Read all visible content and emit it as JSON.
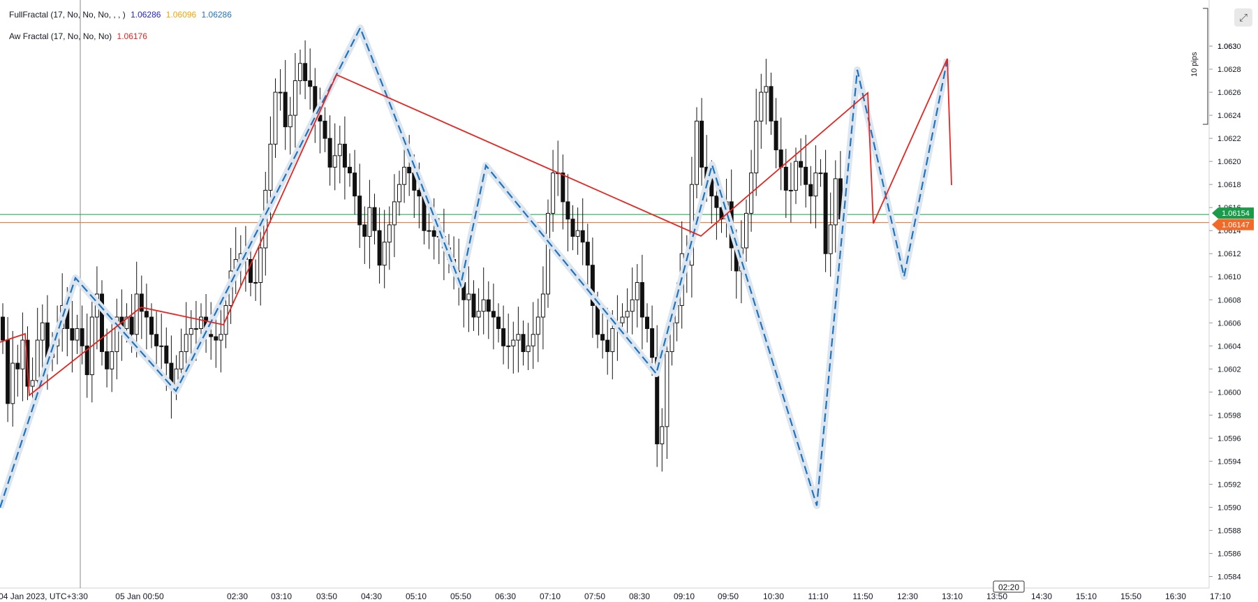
{
  "legend": {
    "indicator1": {
      "name": "FullFractal (17, No, No, No, , , )",
      "v1": "1.06286",
      "v2": "1.06096",
      "v3": "1.06286",
      "c1": "#1f1fd6",
      "c2": "#f2a500",
      "c3": "#1e73be"
    },
    "indicator2": {
      "name": "Aw Fractal (17, No, No, No)",
      "v1": "1.06176",
      "c1": "#e8231f"
    }
  },
  "price_badges": {
    "green": "1.06154",
    "orange": "1.06147",
    "green_color": "#1a9b4a",
    "orange_color": "#f06a2a"
  },
  "scale_label": "10 pips",
  "time_badge": "02:20",
  "chart_data": {
    "type": "candlestick",
    "ylim": [
      1.0583,
      1.0634
    ],
    "y_ticks": [
      "1.0584",
      "1.0586",
      "1.0588",
      "1.0590",
      "1.0592",
      "1.0594",
      "1.0596",
      "1.0598",
      "1.0600",
      "1.0602",
      "1.0604",
      "1.0606",
      "1.0608",
      "1.0610",
      "1.0612",
      "1.0614",
      "1.0616",
      "1.0618",
      "1.0620",
      "1.0622",
      "1.0624",
      "1.0626",
      "1.0628",
      "1.0630",
      "1.063"
    ],
    "x_ticks": [
      "04 Jan 2023, UTC+3:30",
      "05 Jan 00:50",
      "02:30",
      "03:10",
      "03:50",
      "04:30",
      "05:10",
      "05:50",
      "06:30",
      "07:10",
      "07:50",
      "08:30",
      "09:10",
      "09:50",
      "10:30",
      "11:10",
      "11:50",
      "12:30",
      "13:10",
      "13:50",
      "14:30",
      "15:10",
      "15:50",
      "16:30",
      "17:10"
    ],
    "candles_close": [
      1.06045,
      1.0599,
      1.06025,
      1.0602,
      1.06045,
      1.06005,
      1.0601,
      1.06045,
      1.0606,
      1.0603,
      1.0604,
      1.06055,
      1.06075,
      1.06055,
      1.06045,
      1.06055,
      1.0604,
      1.06015,
      1.06065,
      1.06085,
      1.06035,
      1.0602,
      1.06035,
      1.06065,
      1.06055,
      1.06065,
      1.0605,
      1.06085,
      1.0607,
      1.06065,
      1.0605,
      1.0604,
      1.0604,
      1.06025,
      1.06005,
      1.0602,
      1.06035,
      1.0605,
      1.06055,
      1.06055,
      1.06065,
      1.0605,
      1.06048,
      1.06045,
      1.0605,
      1.06075,
      1.06105,
      1.06115,
      1.0612,
      1.06115,
      1.06095,
      1.06095,
      1.06125,
      1.06175,
      1.06215,
      1.0626,
      1.0626,
      1.0623,
      1.0624,
      1.0627,
      1.06285,
      1.0627,
      1.06265,
      1.0624,
      1.06235,
      1.0622,
      1.06195,
      1.06205,
      1.06215,
      1.06195,
      1.0619,
      1.0617,
      1.06145,
      1.06135,
      1.0616,
      1.0614,
      1.0611,
      1.0613,
      1.06145,
      1.06165,
      1.0618,
      1.06195,
      1.0619,
      1.06175,
      1.0617,
      1.0614,
      1.0614,
      1.06135,
      1.06135,
      1.06125,
      1.06115,
      1.06105,
      1.06095,
      1.0608,
      1.06085,
      1.06065,
      1.0607,
      1.0608,
      1.0607,
      1.06065,
      1.06055,
      1.0604,
      1.0604,
      1.06045,
      1.0605,
      1.06035,
      1.0604,
      1.0605,
      1.06065,
      1.06085,
      1.06155,
      1.0619,
      1.0619,
      1.06165,
      1.0615,
      1.06135,
      1.0614,
      1.0613,
      1.0611,
      1.06075,
      1.0605,
      1.06045,
      1.06035,
      1.06055,
      1.0606,
      1.06065,
      1.0607,
      1.0608,
      1.06095,
      1.06065,
      1.06055,
      1.0603,
      1.05955,
      1.0597,
      1.06035,
      1.0606,
      1.06075,
      1.0612,
      1.0611,
      1.0618,
      1.06235,
      1.06195,
      1.06185,
      1.0617,
      1.0616,
      1.0615,
      1.06165,
      1.06125,
      1.06105,
      1.06125,
      1.06155,
      1.0619,
      1.06235,
      1.0626,
      1.06265,
      1.06235,
      1.0621,
      1.06195,
      1.06175,
      1.06175,
      1.062,
      1.06195,
      1.0618,
      1.0617,
      1.0619,
      1.0619,
      1.0612,
      1.06145,
      1.06185,
      1.0615
    ]
  }
}
